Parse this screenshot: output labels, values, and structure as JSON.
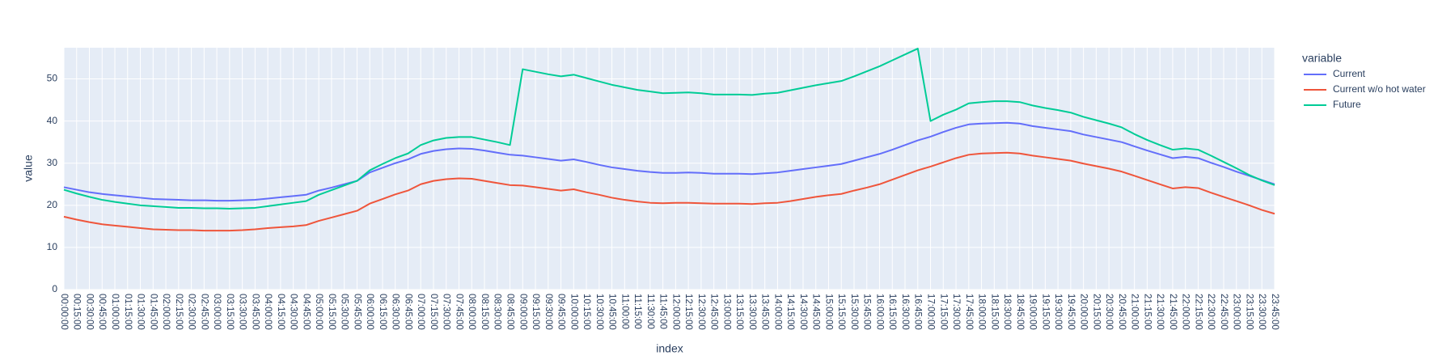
{
  "chart_data": {
    "type": "line",
    "xlabel": "index",
    "ylabel": "value",
    "legend_title": "variable",
    "legend": "right",
    "grid": true,
    "categories": [
      "00:00:00",
      "00:15:00",
      "00:30:00",
      "00:45:00",
      "01:00:00",
      "01:15:00",
      "01:30:00",
      "01:45:00",
      "02:00:00",
      "02:15:00",
      "02:30:00",
      "02:45:00",
      "03:00:00",
      "03:15:00",
      "03:30:00",
      "03:45:00",
      "04:00:00",
      "04:15:00",
      "04:30:00",
      "04:45:00",
      "05:00:00",
      "05:15:00",
      "05:30:00",
      "05:45:00",
      "06:00:00",
      "06:15:00",
      "06:30:00",
      "06:45:00",
      "07:00:00",
      "07:15:00",
      "07:30:00",
      "07:45:00",
      "08:00:00",
      "08:15:00",
      "08:30:00",
      "08:45:00",
      "09:00:00",
      "09:15:00",
      "09:30:00",
      "09:45:00",
      "10:00:00",
      "10:15:00",
      "10:30:00",
      "10:45:00",
      "11:00:00",
      "11:15:00",
      "11:30:00",
      "11:45:00",
      "12:00:00",
      "12:15:00",
      "12:30:00",
      "12:45:00",
      "13:00:00",
      "13:15:00",
      "13:30:00",
      "13:45:00",
      "14:00:00",
      "14:15:00",
      "14:30:00",
      "14:45:00",
      "15:00:00",
      "15:15:00",
      "15:30:00",
      "15:45:00",
      "16:00:00",
      "16:15:00",
      "16:30:00",
      "16:45:00",
      "17:00:00",
      "17:15:00",
      "17:30:00",
      "17:45:00",
      "18:00:00",
      "18:15:00",
      "18:30:00",
      "18:45:00",
      "19:00:00",
      "19:15:00",
      "19:30:00",
      "19:45:00",
      "20:00:00",
      "20:15:00",
      "20:30:00",
      "20:45:00",
      "21:00:00",
      "21:15:00",
      "21:30:00",
      "21:45:00",
      "22:00:00",
      "22:15:00",
      "22:30:00",
      "22:45:00",
      "23:00:00",
      "23:15:00",
      "23:30:00",
      "23:45:00"
    ],
    "series": [
      {
        "name": "Current",
        "color": "#636efa",
        "values": [
          24.3,
          23.7,
          23.1,
          22.7,
          22.4,
          22.1,
          21.8,
          21.5,
          21.4,
          21.3,
          21.2,
          21.2,
          21.1,
          21.1,
          21.2,
          21.3,
          21.6,
          21.9,
          22.2,
          22.5,
          23.5,
          24.2,
          25.0,
          25.8,
          27.8,
          28.9,
          30.0,
          30.9,
          32.2,
          32.9,
          33.3,
          33.5,
          33.4,
          33.0,
          32.5,
          32.0,
          31.8,
          31.4,
          31.0,
          30.6,
          30.9,
          30.3,
          29.6,
          29.0,
          28.6,
          28.2,
          27.9,
          27.7,
          27.7,
          27.8,
          27.7,
          27.5,
          27.5,
          27.5,
          27.4,
          27.6,
          27.8,
          28.2,
          28.6,
          29.0,
          29.4,
          29.8,
          30.6,
          31.4,
          32.2,
          33.2,
          34.3,
          35.4,
          36.3,
          37.4,
          38.4,
          39.2,
          39.4,
          39.5,
          39.6,
          39.4,
          38.8,
          38.4,
          38.0,
          37.6,
          36.8,
          36.2,
          35.6,
          35.0,
          34.0,
          33.0,
          32.1,
          31.2,
          31.5,
          31.2,
          30.1,
          29.1,
          28.0,
          27.0,
          26.0,
          25.0
        ]
      },
      {
        "name": "Current w/o hot water",
        "color": "#ef553b",
        "values": [
          17.3,
          16.6,
          16.0,
          15.5,
          15.2,
          14.9,
          14.6,
          14.3,
          14.2,
          14.1,
          14.1,
          14.0,
          14.0,
          14.0,
          14.1,
          14.3,
          14.6,
          14.8,
          15.0,
          15.3,
          16.3,
          17.1,
          17.9,
          18.7,
          20.4,
          21.5,
          22.6,
          23.5,
          25.0,
          25.8,
          26.2,
          26.4,
          26.3,
          25.8,
          25.3,
          24.8,
          24.7,
          24.3,
          23.9,
          23.5,
          23.8,
          23.1,
          22.5,
          21.8,
          21.3,
          20.9,
          20.6,
          20.5,
          20.6,
          20.6,
          20.5,
          20.4,
          20.4,
          20.4,
          20.3,
          20.5,
          20.6,
          21.0,
          21.5,
          22.0,
          22.4,
          22.7,
          23.5,
          24.2,
          25.0,
          26.1,
          27.2,
          28.3,
          29.2,
          30.2,
          31.2,
          32.0,
          32.3,
          32.4,
          32.5,
          32.3,
          31.8,
          31.4,
          31.0,
          30.6,
          29.9,
          29.3,
          28.7,
          28.0,
          27.0,
          26.0,
          25.0,
          24.0,
          24.3,
          24.1,
          23.0,
          22.0,
          21.0,
          20.0,
          18.9,
          18.0
        ]
      },
      {
        "name": "Future",
        "color": "#00cc96",
        "values": [
          23.7,
          22.8,
          22.0,
          21.3,
          20.8,
          20.4,
          20.0,
          19.8,
          19.6,
          19.4,
          19.4,
          19.3,
          19.3,
          19.2,
          19.3,
          19.4,
          19.8,
          20.2,
          20.6,
          21.0,
          22.5,
          23.6,
          24.7,
          25.8,
          28.3,
          29.8,
          31.2,
          32.3,
          34.3,
          35.4,
          36.0,
          36.2,
          36.2,
          35.6,
          35.0,
          34.3,
          52.3,
          51.7,
          51.1,
          50.6,
          51.0,
          50.2,
          49.4,
          48.6,
          48.0,
          47.4,
          47.0,
          46.6,
          46.7,
          46.8,
          46.6,
          46.3,
          46.3,
          46.3,
          46.2,
          46.5,
          46.7,
          47.3,
          47.9,
          48.5,
          49.0,
          49.5,
          50.6,
          51.8,
          53.0,
          54.4,
          55.8,
          57.2,
          40.0,
          41.5,
          42.7,
          44.2,
          44.5,
          44.7,
          44.7,
          44.5,
          43.7,
          43.1,
          42.6,
          42.0,
          41.0,
          40.2,
          39.4,
          38.5,
          36.9,
          35.5,
          34.3,
          33.2,
          33.5,
          33.2,
          31.8,
          30.3,
          28.8,
          27.2,
          25.9,
          24.8
        ]
      }
    ],
    "ylim": [
      0,
      57.4
    ],
    "yticks": [
      0,
      10,
      20,
      30,
      40,
      50
    ]
  }
}
